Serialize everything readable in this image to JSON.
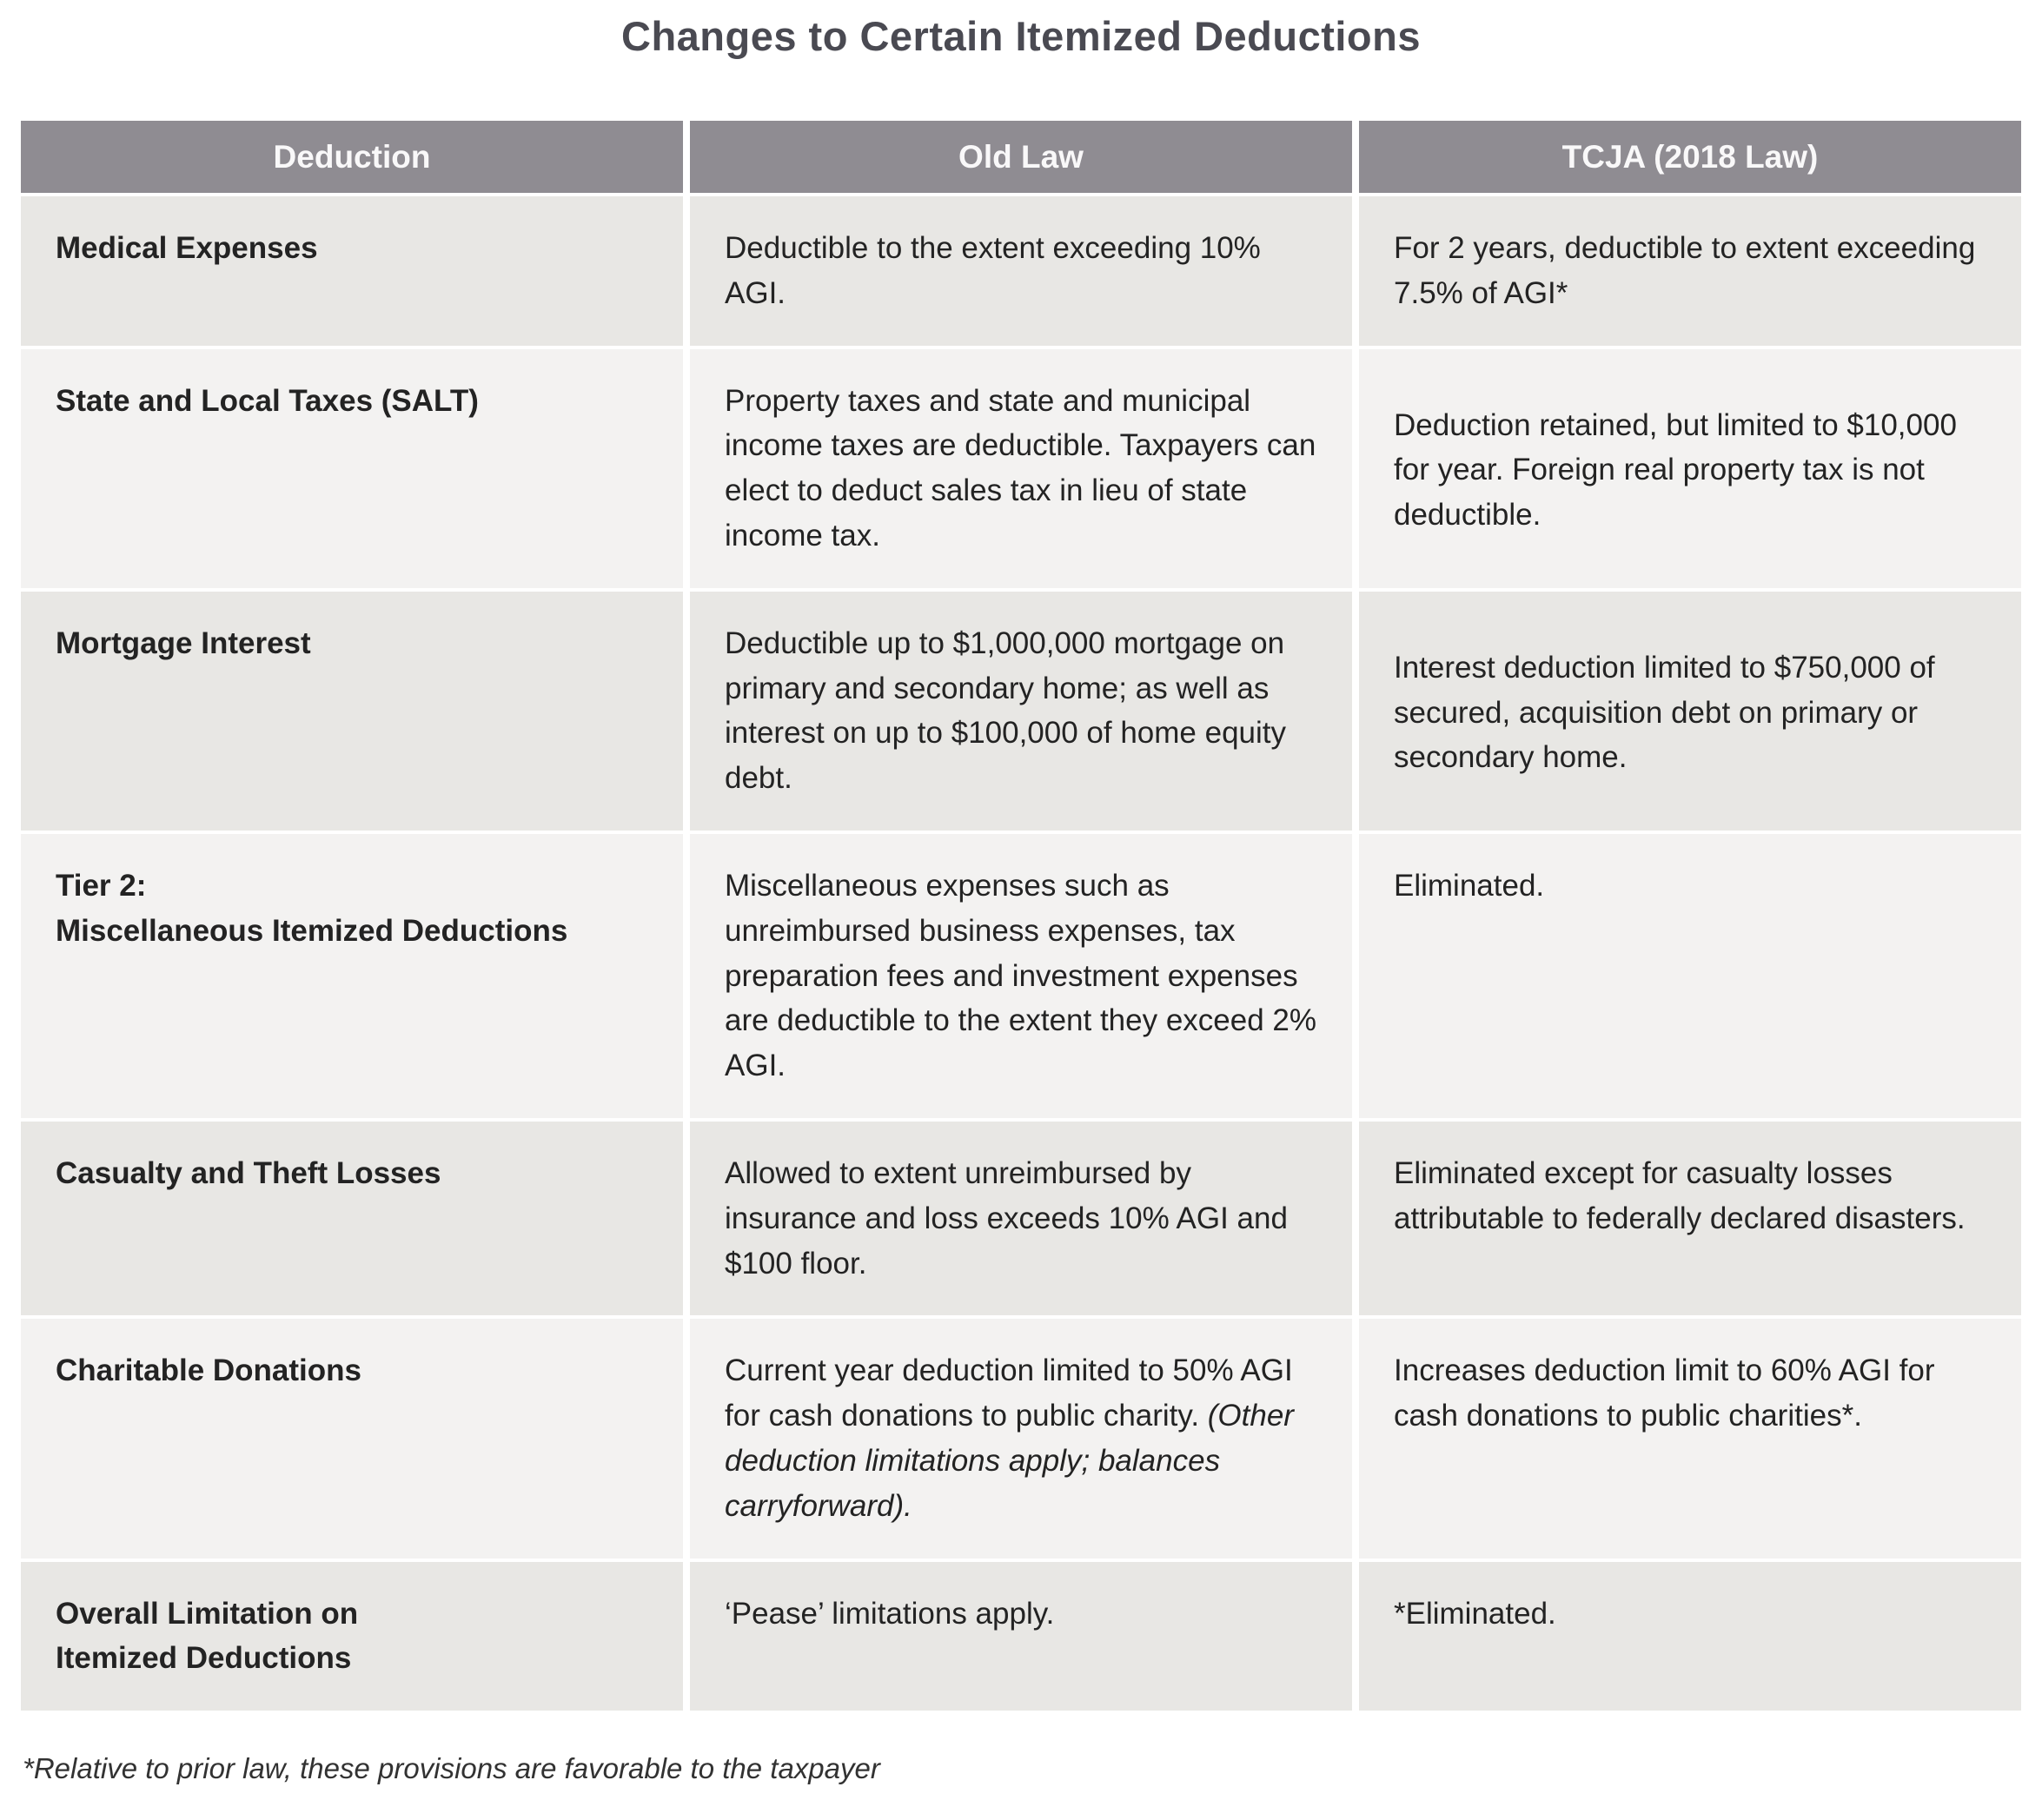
{
  "title": "Changes to Certain Itemized Deductions",
  "footnote": "*Relative to prior law, these provisions are favorable to the taxpayer",
  "colors": {
    "header_bg": "#8f8c92",
    "header_text": "#f9f8f9",
    "row_dark": "#e8e7e4",
    "row_light": "#f3f2f1",
    "title_color": "#4a4a52",
    "body_text": "#232323"
  },
  "table": {
    "columns": [
      "Deduction",
      "Old Law",
      "TCJA (2018 Law)"
    ],
    "rows": [
      {
        "deduction": "Medical Expenses",
        "old_law": "Deductible to the extent exceeding 10% AGI.",
        "tcja": "For 2 years, deductible to extent exceeding 7.5% of AGI*"
      },
      {
        "deduction": "State and Local Taxes (SALT)",
        "old_law": "Property taxes and state and municipal income taxes are deductible. Taxpayers can elect to deduct sales tax in lieu of state income tax.",
        "tcja": "Deduction retained, but limited to $10,000 for year. Foreign real property tax is not deductible."
      },
      {
        "deduction": "Mortgage Interest",
        "old_law": "Deductible up to $1,000,000 mortgage on primary and secondary home; as well as interest on up to $100,000 of home equity debt.",
        "tcja": "Interest deduction limited to $750,000 of secured, acquisition debt on primary or secondary home."
      },
      {
        "deduction": "Tier 2:\nMiscellaneous Itemized Deductions",
        "old_law": "Miscellaneous expenses such as unreimbursed business expenses, tax preparation fees and investment expenses are deductible to the extent they exceed 2% AGI.",
        "tcja": "Eliminated."
      },
      {
        "deduction": "Casualty and Theft Losses",
        "old_law": "Allowed to extent unreimbursed by insurance and loss exceeds 10% AGI and $100 floor.",
        "tcja": "Eliminated except for casualty losses attributable to federally declared disasters."
      },
      {
        "deduction": "Charitable Donations",
        "old_law": "Current year deduction limited to 50% AGI for cash donations to public charity. ",
        "old_law_italic": "(Other deduction limitations apply; balances carryforward).",
        "tcja": "Increases deduction limit to 60% AGI for cash donations to public charities*."
      },
      {
        "deduction": "Overall Limitation on\nItemized Deductions",
        "old_law": "‘Pease’ limitations apply.",
        "tcja": "*Eliminated."
      }
    ]
  }
}
